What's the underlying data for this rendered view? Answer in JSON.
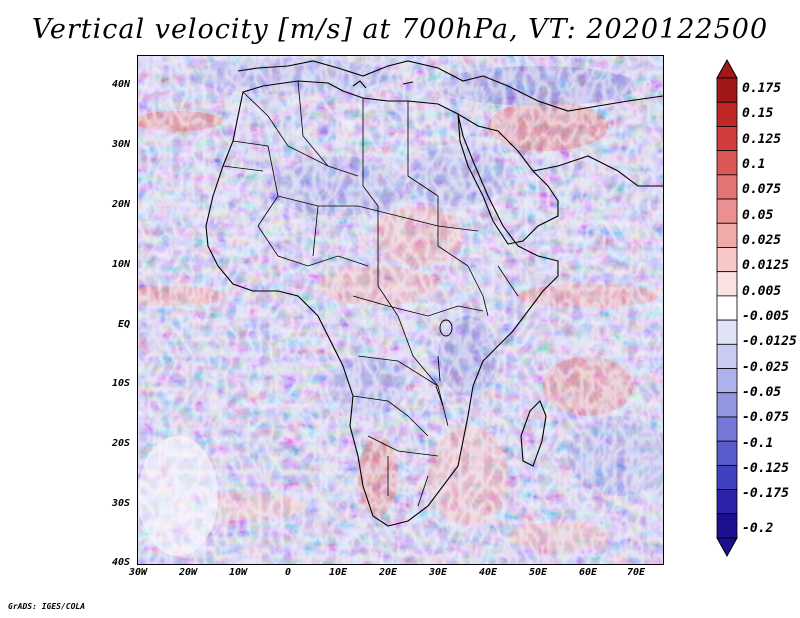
{
  "title": "Vertical velocity [m/s] at 700hPa, VT: 2020122500",
  "credit": "GrADS: IGES/COLA",
  "map": {
    "lat_labels": [
      "40N",
      "30N",
      "20N",
      "10N",
      "EQ",
      "10S",
      "20S",
      "30S",
      "40S"
    ],
    "lon_labels": [
      "30W",
      "20W",
      "10W",
      "0",
      "10E",
      "20E",
      "30E",
      "40E",
      "50E",
      "60E",
      "70E"
    ],
    "lat_range": [
      -40,
      45
    ],
    "lon_range": [
      -30,
      75
    ],
    "field": "Vertical velocity",
    "level": "700hPa"
  },
  "colorbar": {
    "labels": [
      "0.175",
      "0.15",
      "0.125",
      "0.1",
      "0.075",
      "0.05",
      "0.025",
      "0.0125",
      "0.005",
      "-0.005",
      "-0.0125",
      "-0.025",
      "-0.05",
      "-0.075",
      "-0.1",
      "-0.125",
      "-0.175",
      "-0.2"
    ],
    "colors": [
      "#a01818",
      "#c02828",
      "#d23c3c",
      "#dc5858",
      "#e47474",
      "#ea9090",
      "#f0aaaa",
      "#f6c8c8",
      "#fbe2e2",
      "#ffffff",
      "#e0e2f8",
      "#c8ccf2",
      "#adb2ec",
      "#9096e2",
      "#7478d8",
      "#5a5ccd",
      "#4040c0",
      "#2a22a8",
      "#1c1090"
    ]
  }
}
